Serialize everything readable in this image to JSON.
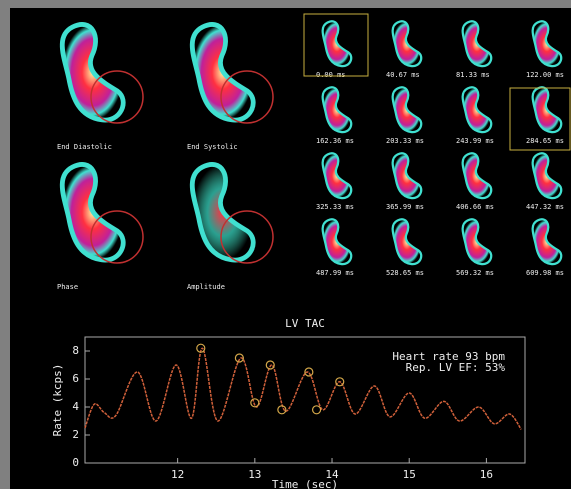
{
  "images": {
    "large_labels": [
      "End Diastolic",
      "End Systolic",
      "Phase",
      "Amplitude"
    ],
    "frame_labels": [
      "0.00 ms",
      "40.67 ms",
      "81.33 ms",
      "122.00 ms",
      "162.36 ms",
      "203.33 ms",
      "243.99 ms",
      "284.65 ms",
      "325.33 ms",
      "365.99 ms",
      "406.66 ms",
      "447.32 ms",
      "487.99 ms",
      "528.65 ms",
      "569.32 ms",
      "609.98 ms"
    ]
  },
  "chart_data": {
    "type": "line",
    "title": "LV TAC",
    "x_label": "Time (sec)",
    "y_label": "Rate (kcps)",
    "annotations": [
      "Heart rate 93 bpm",
      "Rep. LV EF: 53%"
    ],
    "x": [
      10.8,
      10.92,
      11.05,
      11.2,
      11.48,
      11.72,
      11.98,
      12.18,
      12.32,
      12.52,
      12.82,
      13.02,
      13.22,
      13.4,
      13.68,
      13.88,
      14.1,
      14.3,
      14.55,
      14.75,
      15.0,
      15.2,
      15.45,
      15.65,
      15.9,
      16.1,
      16.3,
      16.45
    ],
    "values": [
      2.5,
      4.2,
      3.6,
      3.4,
      6.5,
      3.0,
      7.0,
      3.2,
      8.2,
      3.0,
      7.5,
      4.0,
      7.0,
      3.7,
      6.5,
      3.8,
      5.8,
      3.5,
      5.5,
      3.3,
      5.0,
      3.2,
      4.4,
      3.0,
      4.0,
      2.8,
      3.5,
      2.4
    ],
    "color": "#d0603a",
    "markers": {
      "x": [
        12.3,
        12.8,
        13.2,
        13.0,
        13.35,
        13.7,
        13.8,
        14.1
      ],
      "values": [
        8.2,
        7.5,
        7.0,
        4.3,
        3.8,
        6.5,
        3.8,
        5.8
      ],
      "color": "#d4a84a"
    },
    "xlim": [
      10.8,
      16.5
    ],
    "ylim": [
      0,
      9
    ],
    "xticks": [
      12,
      13,
      14,
      15,
      16
    ],
    "yticks": [
      0,
      2,
      4,
      6,
      8
    ]
  }
}
